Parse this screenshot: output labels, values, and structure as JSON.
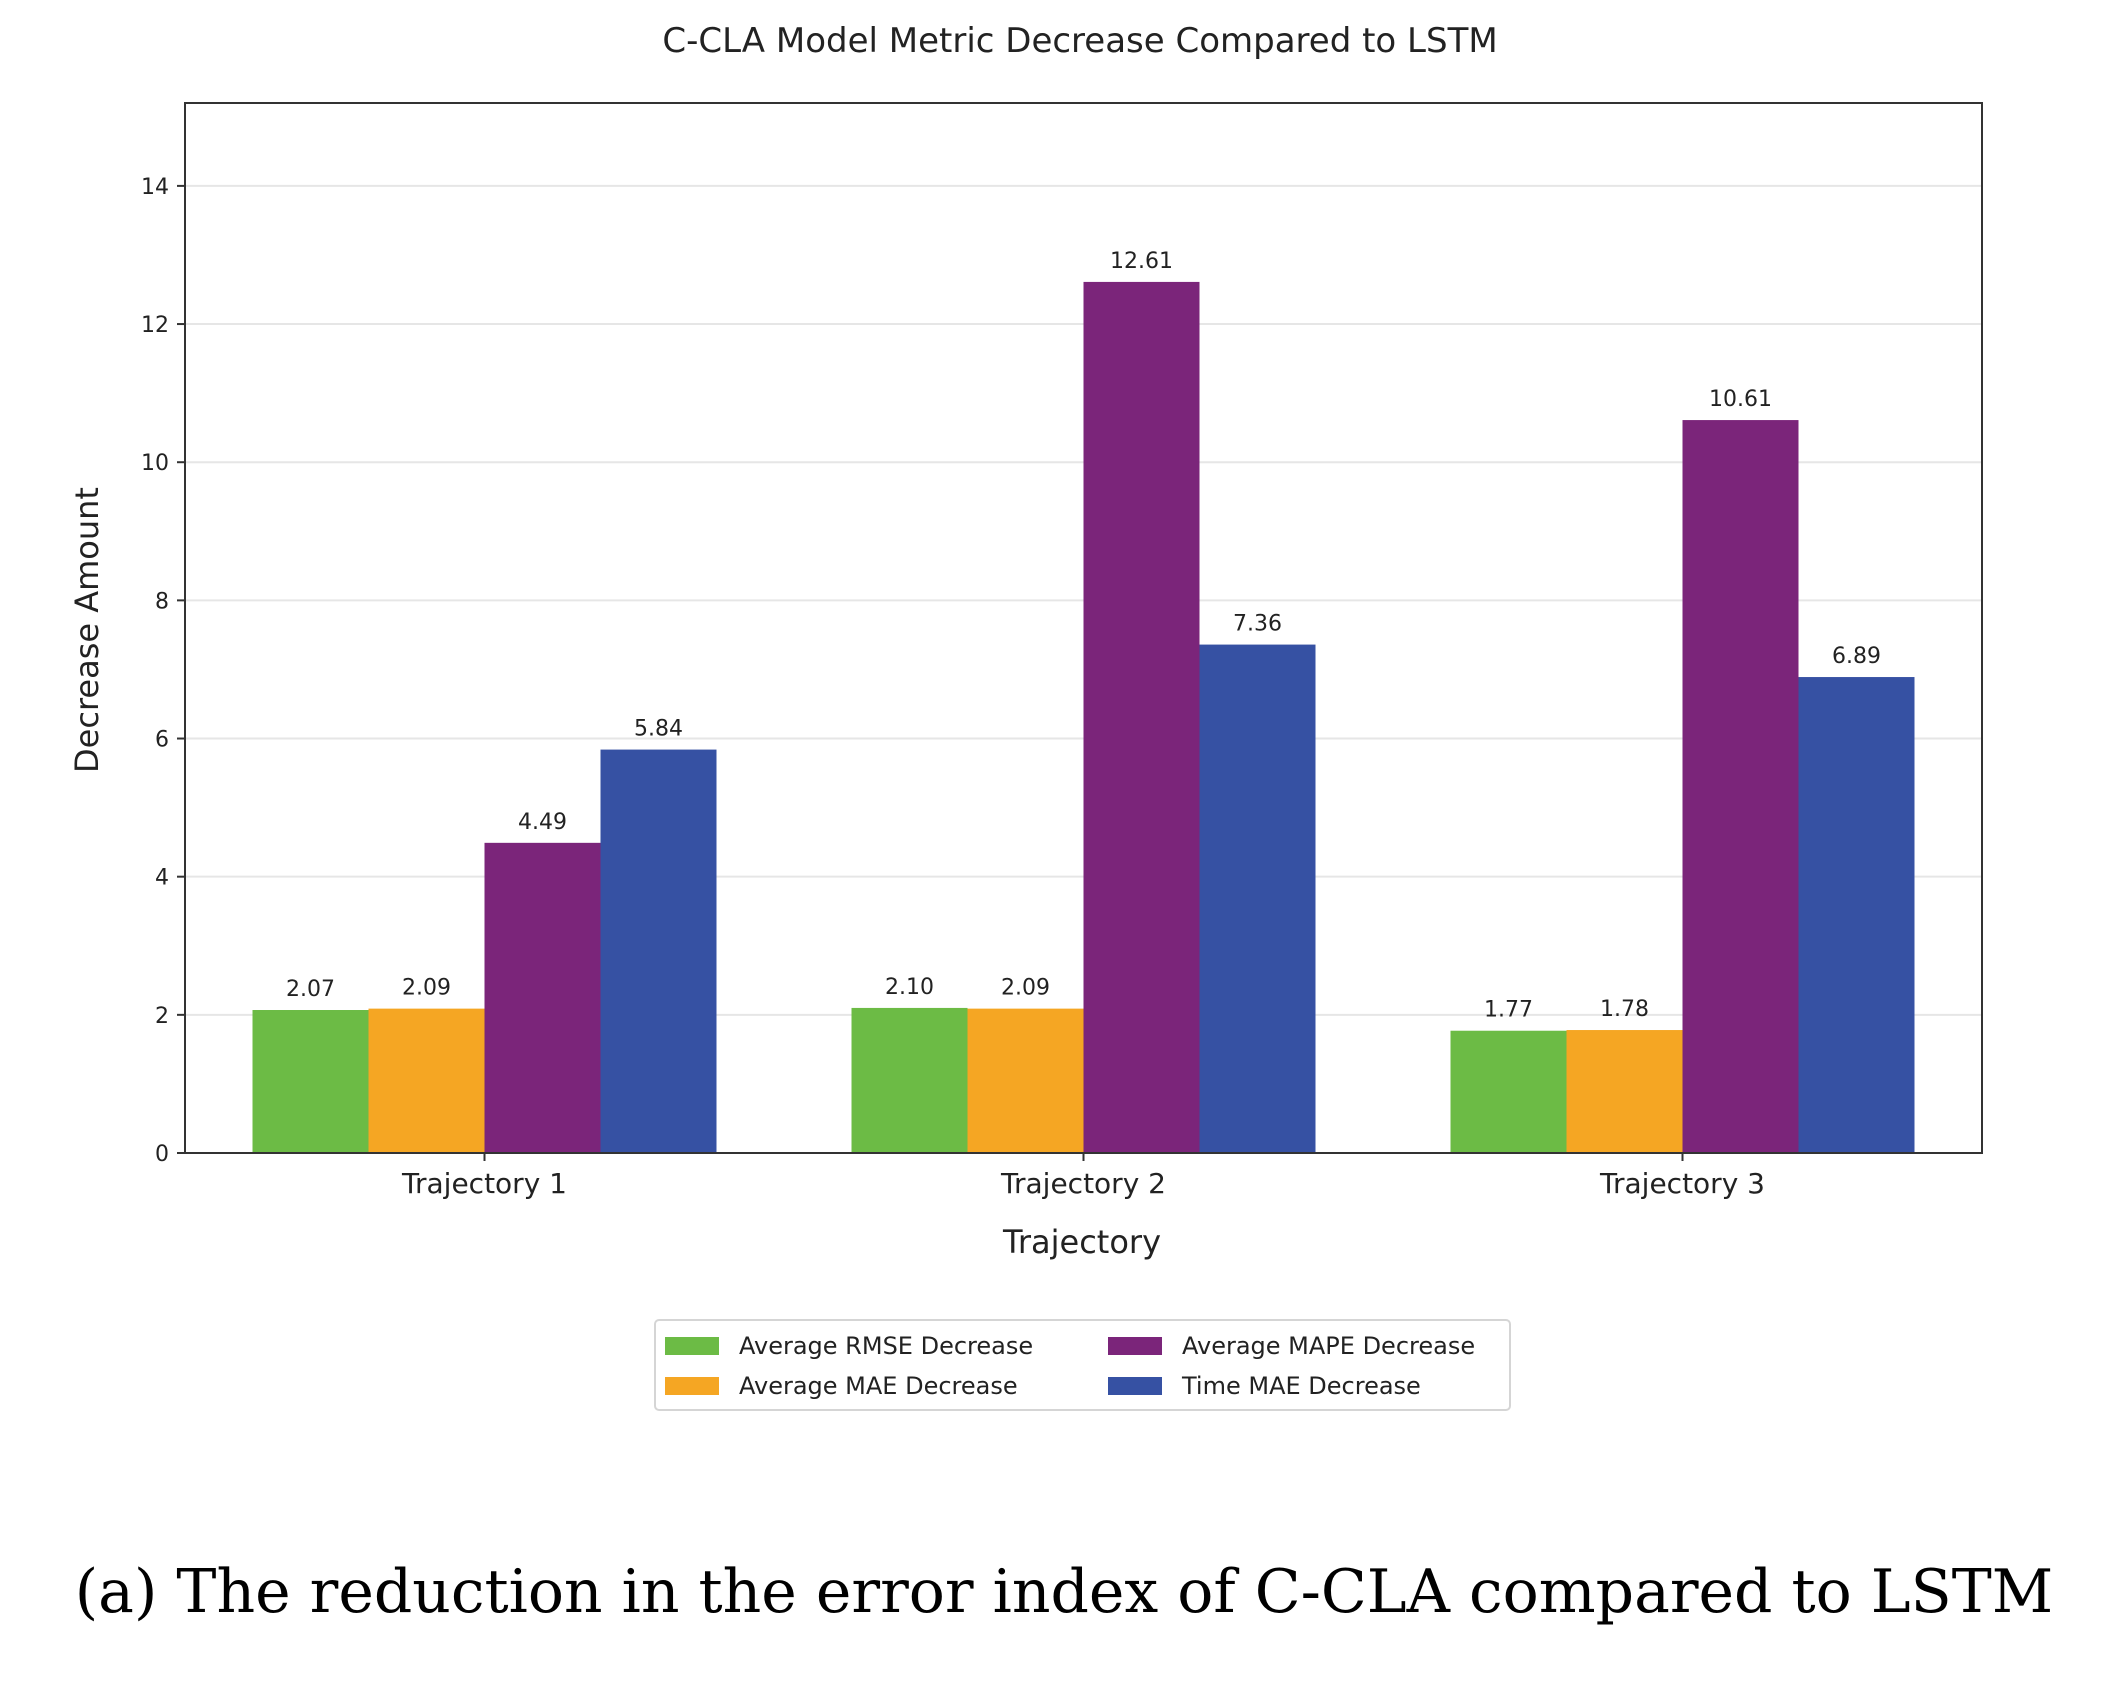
{
  "chart_data": {
    "type": "bar",
    "title": "C-CLA Model Metric Decrease Compared to LSTM",
    "xlabel": "Trajectory",
    "ylabel": "Decrease Amount",
    "ylim": [
      0,
      15.2
    ],
    "yticks": [
      0,
      2,
      4,
      6,
      8,
      10,
      12,
      14
    ],
    "grid": "y",
    "categories": [
      "Trajectory 1",
      "Trajectory 2",
      "Trajectory 3"
    ],
    "series": [
      {
        "name": "Average RMSE Decrease",
        "color": "#6cbb45",
        "values": [
          2.07,
          2.1,
          1.77
        ],
        "labels": [
          "2.07",
          "2.10",
          "1.77"
        ]
      },
      {
        "name": "Average MAE Decrease",
        "color": "#f5a623",
        "values": [
          2.09,
          2.09,
          1.78
        ],
        "labels": [
          "2.09",
          "2.09",
          "1.78"
        ]
      },
      {
        "name": "Average MAPE Decrease",
        "color": "#7b257a",
        "values": [
          4.49,
          12.61,
          10.61
        ],
        "labels": [
          "4.49",
          "12.61",
          "10.61"
        ]
      },
      {
        "name": "Time MAE Decrease",
        "color": "#3651a3",
        "values": [
          5.84,
          7.36,
          6.89
        ],
        "labels": [
          "5.84",
          "7.36",
          "6.89"
        ]
      }
    ],
    "legend": "bottom-center"
  },
  "caption": "(a) The reduction in the error index of C-CLA compared to LSTM"
}
